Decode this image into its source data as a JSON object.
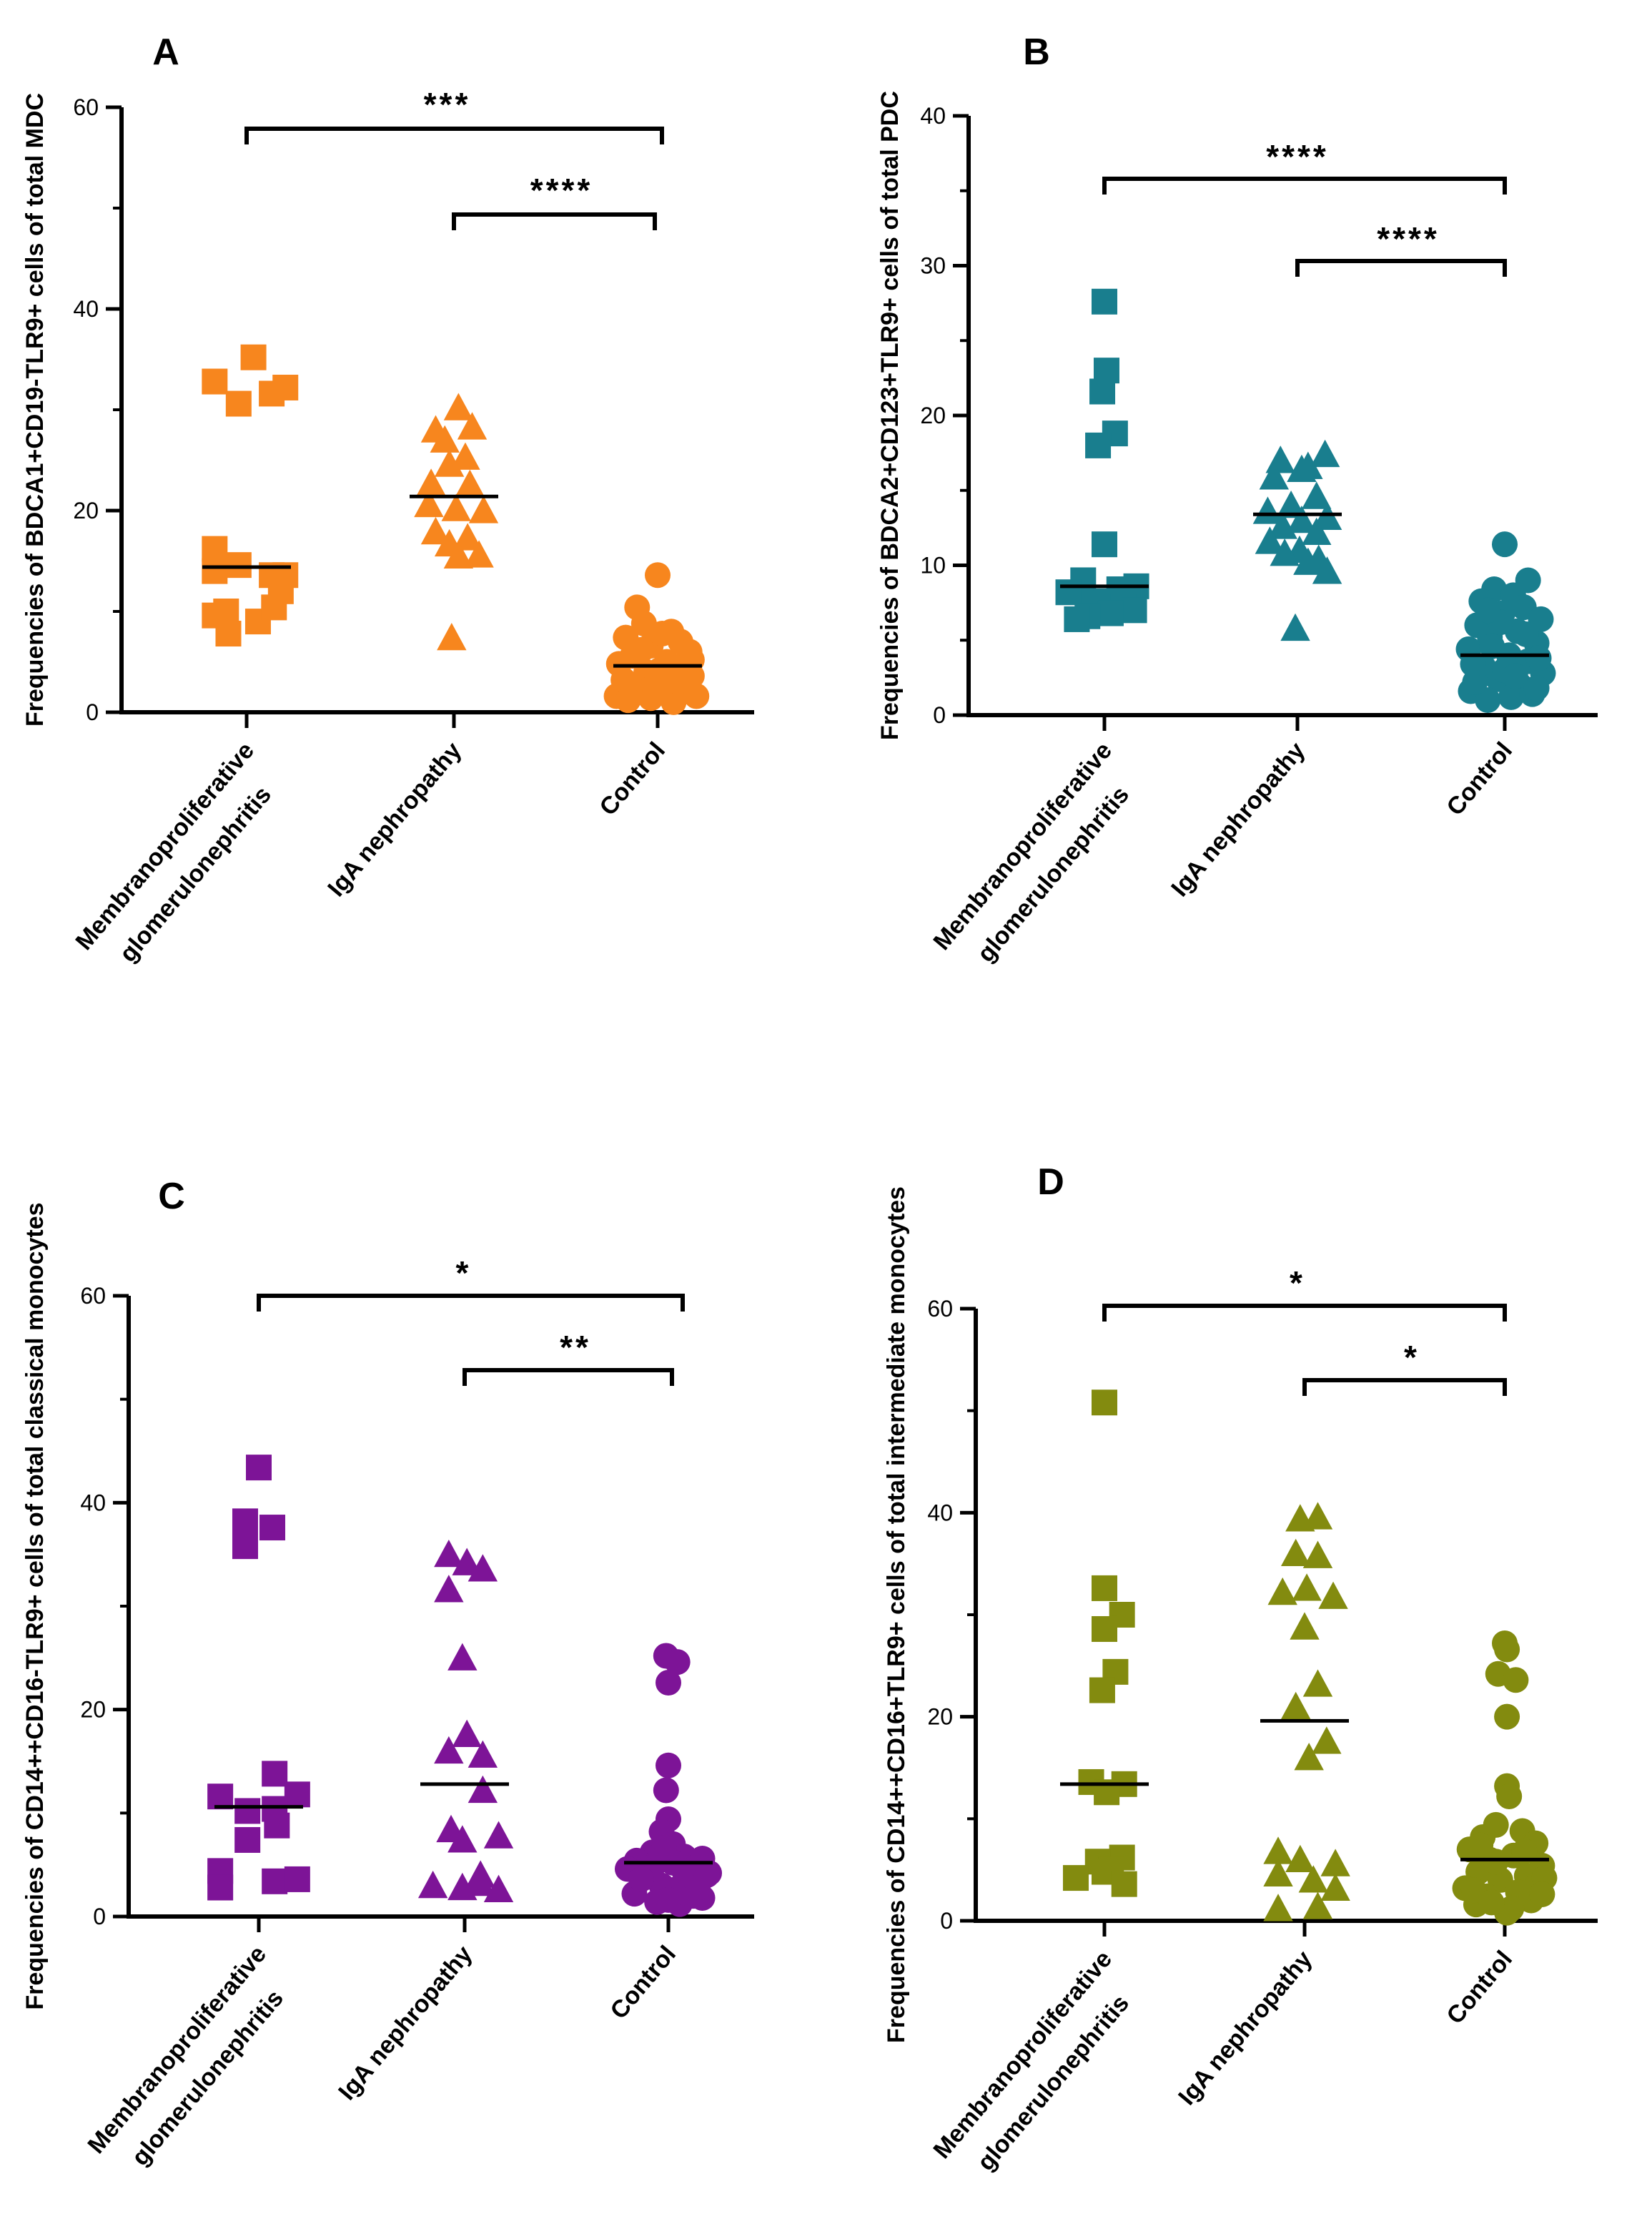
{
  "chart_data": [
    {
      "type": "scatter",
      "panel": "A",
      "ylabel": "Frequencies of BDCA1+CD19-TLR9+ cells of total MDC",
      "ylim": [
        0,
        60
      ],
      "yticks": [
        0,
        20,
        40,
        60
      ],
      "categories": [
        [
          "Membranoproliferative",
          "glomerulonephritis"
        ],
        [
          "IgA nephropathy"
        ],
        [
          "Control"
        ]
      ],
      "color": "#F7861E",
      "markers": [
        "square",
        "triangle",
        "circle"
      ],
      "series": [
        {
          "name": "Membranoproliferative glomerulonephritis",
          "values": [
            32.8,
            35.2,
            30.6,
            31.6,
            32.2,
            16.2,
            14.6,
            13.6,
            14.0,
            12.0,
            13.6,
            9.6,
            7.8,
            9.0,
            10.0,
            10.4
          ],
          "offsets": [
            -0.28,
            0.06,
            -0.07,
            0.22,
            0.34,
            -0.28,
            -0.07,
            0.22,
            -0.28,
            0.3,
            0.34,
            -0.28,
            -0.16,
            0.1,
            -0.18,
            0.24
          ],
          "median": 14.4
        },
        {
          "name": "IgA nephropathy",
          "values": [
            30.2,
            28.0,
            28.3,
            27.0,
            25.3,
            22.7,
            24.6,
            22.6,
            20.6,
            20.2,
            20.0,
            17.9,
            17.3,
            16.7,
            15.5,
            15.6,
            7.4
          ],
          "offsets": [
            0.04,
            -0.16,
            0.16,
            -0.08,
            0.1,
            -0.2,
            -0.04,
            0.14,
            -0.22,
            0.02,
            0.26,
            -0.16,
            0.12,
            -0.04,
            0.04,
            0.22,
            -0.02
          ],
          "median": 21.4
        },
        {
          "name": "Control",
          "values": [
            13.6,
            10.4,
            8.8,
            8.0,
            7.4,
            7.0,
            6.6,
            6.0,
            5.6,
            5.0,
            4.8,
            4.4,
            4.0,
            3.6,
            3.2,
            2.8,
            2.4,
            2.0,
            1.6,
            1.4,
            1.6,
            2.6,
            3.4,
            4.2,
            5.2,
            6.2,
            7.8,
            1.0,
            2.2,
            1.2,
            2.0,
            3.0
          ],
          "offsets": [
            0.0,
            -0.18,
            -0.12,
            0.12,
            -0.28,
            0.2,
            -0.06,
            0.28,
            -0.22,
            0.08,
            -0.34,
            0.16,
            -0.1,
            0.3,
            -0.3,
            0.06,
            -0.18,
            0.22,
            -0.36,
            -0.06,
            0.34,
            -0.24,
            0.24,
            0.02,
            0.3,
            -0.14,
            0.04,
            0.14,
            -0.02,
            -0.26,
            0.1,
            0.18
          ],
          "median": 4.6
        }
      ],
      "significance": [
        {
          "from": 0,
          "to": 2,
          "label": "***"
        },
        {
          "from": 1,
          "to": 2,
          "label": "****"
        }
      ]
    },
    {
      "type": "scatter",
      "panel": "B",
      "ylabel": "Frequencies of BDCA2+CD123+TLR9+ cells of total PDC",
      "ylim": [
        0,
        40
      ],
      "yticks": [
        0,
        10,
        20,
        30,
        40
      ],
      "categories": [
        [
          "Membranoproliferative",
          "glomerulonephritis"
        ],
        [
          "IgA nephropathy"
        ],
        [
          "Control"
        ]
      ],
      "color": "#197E8E",
      "markers": [
        "square",
        "triangle",
        "circle"
      ],
      "series": [
        {
          "name": "Membranoproliferative glomerulonephritis",
          "values": [
            27.6,
            23.0,
            21.6,
            18.8,
            18.0,
            11.4,
            9.0,
            8.6,
            8.4,
            8.2,
            8.0,
            7.6,
            7.4,
            7.2,
            7.0,
            6.8,
            6.6,
            6.4
          ],
          "offsets": [
            0.0,
            0.02,
            -0.02,
            0.1,
            -0.06,
            0.0,
            -0.2,
            0.3,
            0.14,
            -0.34,
            0.22,
            0.02,
            -0.1,
            0.18,
            0.28,
            0.06,
            -0.16,
            -0.26
          ],
          "median": 8.6
        },
        {
          "name": "IgA nephropathy",
          "values": [
            17.4,
            17.0,
            16.6,
            16.4,
            15.9,
            14.6,
            14.0,
            13.6,
            13.2,
            13.0,
            12.6,
            12.2,
            11.6,
            11.0,
            10.8,
            10.4,
            10.2,
            9.6,
            5.8
          ],
          "offsets": [
            0.26,
            -0.16,
            0.1,
            0.04,
            -0.22,
            0.18,
            -0.06,
            -0.28,
            0.28,
            0.04,
            -0.14,
            0.18,
            -0.26,
            0.02,
            -0.12,
            0.2,
            0.1,
            0.28,
            -0.02
          ],
          "median": 13.4
        },
        {
          "name": "Control",
          "values": [
            11.4,
            9.0,
            8.4,
            8.0,
            7.6,
            7.2,
            6.8,
            6.4,
            6.0,
            5.6,
            5.2,
            4.8,
            4.4,
            4.0,
            3.6,
            3.2,
            2.8,
            2.4,
            2.0,
            1.6,
            1.2,
            1.0,
            1.4,
            2.2,
            3.0,
            3.8,
            4.6,
            5.4,
            6.2,
            7.0,
            1.8,
            2.6,
            3.4
          ],
          "offsets": [
            0.0,
            0.22,
            -0.1,
            0.08,
            -0.22,
            0.18,
            -0.02,
            0.34,
            -0.26,
            0.12,
            -0.14,
            0.3,
            -0.34,
            0.04,
            0.22,
            -0.2,
            0.36,
            -0.06,
            0.14,
            -0.32,
            0.06,
            -0.16,
            0.26,
            -0.28,
            0.0,
            0.32,
            -0.12,
            0.2,
            -0.04,
            -0.16,
            0.3,
            0.1,
            -0.3
          ],
          "median": 4.0
        }
      ],
      "significance": [
        {
          "from": 0,
          "to": 2,
          "label": "****"
        },
        {
          "from": 1,
          "to": 2,
          "label": "****"
        }
      ]
    },
    {
      "type": "scatter",
      "panel": "C",
      "ylabel": "Frequencies of CD14++CD16-TLR9+ cells of total classical monocytes",
      "ylim": [
        0,
        60
      ],
      "yticks": [
        0,
        20,
        40,
        60
      ],
      "categories": [
        [
          "Membranoproliferative",
          "glomerulonephritis"
        ],
        [
          "IgA nephropathy"
        ],
        [
          "Control"
        ]
      ],
      "color": "#7D1497",
      "markers": [
        "square",
        "triangle",
        "circle"
      ],
      "series": [
        {
          "name": "Membranoproliferative glomerulonephritis",
          "values": [
            43.4,
            38.2,
            37.6,
            35.8,
            13.8,
            11.6,
            11.8,
            10.2,
            10.4,
            7.4,
            8.8,
            4.4,
            3.4,
            2.8,
            3.6
          ],
          "offsets": [
            0.0,
            -0.12,
            0.12,
            -0.12,
            0.14,
            -0.34,
            0.34,
            -0.1,
            0.14,
            -0.1,
            0.16,
            -0.34,
            0.14,
            -0.34,
            0.34
          ],
          "median": 10.6
        },
        {
          "name": "IgA nephropathy",
          "values": [
            35.0,
            34.2,
            33.6,
            31.6,
            25.0,
            17.6,
            16.0,
            15.6,
            12.2,
            8.4,
            7.8,
            7.4,
            4.0,
            3.0,
            2.8,
            3.2,
            2.6
          ],
          "offsets": [
            -0.14,
            0.02,
            0.16,
            -0.14,
            -0.02,
            0.02,
            -0.14,
            0.16,
            0.16,
            -0.12,
            0.3,
            -0.02,
            0.14,
            -0.28,
            -0.02,
            0.14,
            0.3
          ],
          "median": 12.8
        },
        {
          "name": "Control",
          "values": [
            25.2,
            24.6,
            22.6,
            14.6,
            12.2,
            9.4,
            8.2,
            7.0,
            6.2,
            5.8,
            5.4,
            5.0,
            4.6,
            4.2,
            3.8,
            3.4,
            3.0,
            2.6,
            2.2,
            1.8,
            1.4,
            1.2,
            2.0,
            4.8,
            5.2,
            6.6,
            4.4,
            3.6,
            2.8,
            1.6,
            5.6,
            4.0
          ],
          "offsets": [
            -0.02,
            0.08,
            0.0,
            0.0,
            -0.02,
            0.0,
            -0.06,
            0.04,
            -0.14,
            0.14,
            -0.28,
            0.26,
            -0.36,
            0.36,
            -0.2,
            0.2,
            -0.06,
            0.06,
            -0.3,
            0.3,
            -0.1,
            0.1,
            0.22,
            -0.14,
            0.04,
            -0.04,
            0.14,
            -0.24,
            0.26,
            0.0,
            0.3,
            0.34
          ],
          "median": 5.2
        }
      ],
      "significance": [
        {
          "from": 0,
          "to": 2,
          "label": "*"
        },
        {
          "from": 1,
          "to": 2,
          "label": "**"
        }
      ]
    },
    {
      "type": "scatter",
      "panel": "D",
      "ylabel": "Frequencies of CD14++CD16+TLR9+ cells of total intermediate monocytes",
      "ylim": [
        0,
        60
      ],
      "yticks": [
        0,
        20,
        40,
        60
      ],
      "categories": [
        [
          "Membranoproliferative",
          "glomerulonephritis"
        ],
        [
          "IgA nephropathy"
        ],
        [
          "Control"
        ]
      ],
      "color": "#838B0F",
      "markers": [
        "square",
        "triangle",
        "circle"
      ],
      "series": [
        {
          "name": "Membranoproliferative glomerulonephritis",
          "values": [
            50.8,
            32.6,
            30.0,
            28.6,
            24.4,
            22.6,
            13.6,
            13.4,
            12.6,
            6.2,
            5.8,
            5.0,
            4.8,
            4.2,
            3.6
          ],
          "offsets": [
            0.0,
            0.0,
            0.16,
            0.0,
            0.1,
            -0.02,
            -0.12,
            0.18,
            0.02,
            0.16,
            -0.06,
            0.06,
            0.0,
            -0.26,
            0.18
          ],
          "median": 13.4
        },
        {
          "name": "IgA nephropathy",
          "values": [
            39.4,
            39.6,
            36.0,
            35.8,
            32.6,
            32.2,
            31.8,
            28.8,
            23.2,
            21.0,
            17.6,
            16.0,
            6.8,
            6.0,
            4.6,
            4.0,
            5.6,
            3.2,
            1.2,
            1.4
          ],
          "offsets": [
            -0.04,
            0.12,
            -0.08,
            0.12,
            0.02,
            -0.2,
            0.26,
            0.0,
            0.12,
            -0.08,
            0.2,
            0.04,
            -0.24,
            -0.04,
            -0.24,
            0.08,
            0.28,
            0.28,
            -0.24,
            0.12
          ],
          "median": 19.6
        },
        {
          "name": "Control",
          "values": [
            27.2,
            26.6,
            24.2,
            23.6,
            20.0,
            13.2,
            12.2,
            9.4,
            8.8,
            8.2,
            7.6,
            7.0,
            6.4,
            6.0,
            5.4,
            4.8,
            4.4,
            4.0,
            3.6,
            3.2,
            2.8,
            2.4,
            2.0,
            1.6,
            1.2,
            0.8,
            5.8,
            6.8,
            3.0,
            4.2,
            2.6,
            1.8,
            7.4
          ],
          "offsets": [
            0.0,
            0.02,
            -0.06,
            0.1,
            0.02,
            0.02,
            0.04,
            -0.08,
            0.16,
            -0.2,
            0.28,
            -0.32,
            0.08,
            -0.14,
            0.34,
            -0.24,
            0.2,
            -0.04,
            0.3,
            -0.36,
            0.12,
            -0.16,
            0.24,
            -0.26,
            0.06,
            0.02,
            -0.08,
            0.18,
            -0.28,
            0.36,
            0.34,
            -0.12,
            -0.22
          ],
          "median": 6.0
        }
      ],
      "significance": [
        {
          "from": 0,
          "to": 2,
          "label": "*"
        },
        {
          "from": 1,
          "to": 2,
          "label": "*"
        }
      ]
    }
  ]
}
